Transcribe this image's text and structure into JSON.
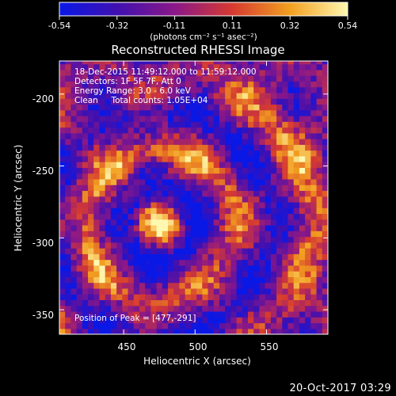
{
  "chart_data": {
    "type": "heatmap",
    "title": "Reconstructed RHESSI Image",
    "xlabel": "Heliocentric X (arcsec)",
    "ylabel": "Heliocentric Y (arcsec)",
    "xlim": [
      405,
      593
    ],
    "ylim": [
      -367,
      -177
    ],
    "x_ticks": [
      450,
      500,
      550
    ],
    "y_ticks": [
      -200,
      -250,
      -300,
      -350
    ],
    "colorbar": {
      "unit_label": "(photons cm⁻² s⁻¹ asec⁻²)",
      "ticks": [
        "-0.54",
        "-0.32",
        "-0.11",
        "0.11",
        "0.32",
        "0.54"
      ],
      "range": [
        -0.54,
        0.54
      ],
      "colors": [
        "#0a18e6",
        "#4010b0",
        "#8a1888",
        "#d63a30",
        "#f2a020",
        "#fff8b0"
      ]
    },
    "annotations": [
      "18-Dec-2015 11:49:12.000 to 11:59:12.000",
      "Detectors: 1F 5F 7F, Att 0",
      "Energy Range: 3.0 - 6.0 keV",
      "Clean     Total counts: 1.05E+04"
    ],
    "peak_label": "Position of Peak = [477,-291]",
    "peak_position": [
      477,
      -291
    ],
    "pixel_size_arcsec": 4
  },
  "footer_timestamp": "20-Oct-2017 03:29"
}
